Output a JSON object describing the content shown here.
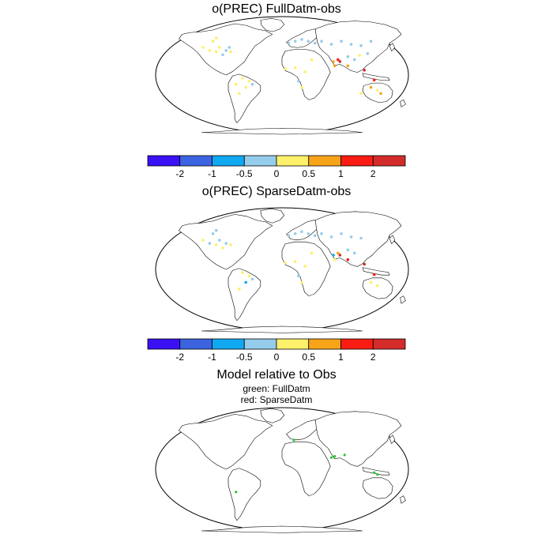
{
  "panels": [
    {
      "title": "o(PREC) FullDatm-obs",
      "legend": {
        "colors": [
          "#3a10f5",
          "#3c64e0",
          "#10a8f0",
          "#96cceb",
          "#fdf06a",
          "#f7a418",
          "#fb1c14",
          "#d32c2a"
        ],
        "ticks": [
          "-2",
          "-1",
          "-0.5",
          "0",
          "0.5",
          "1",
          "2"
        ]
      }
    },
    {
      "title": "o(PREC) SparseDatm-obs",
      "legend": {
        "colors": [
          "#3a10f5",
          "#3c64e0",
          "#10a8f0",
          "#96cceb",
          "#fdf06a",
          "#f7a418",
          "#fb1c14",
          "#d32c2a"
        ],
        "ticks": [
          "-2",
          "-1",
          "-0.5",
          "0",
          "0.5",
          "1",
          "2"
        ]
      }
    },
    {
      "title": "Model relative to Obs",
      "subtitle_1": "green: FullDatm",
      "subtitle_2": "red: SparseDatm",
      "marker_colors": {
        "full": "#22c832",
        "sparse": "#e02020"
      }
    }
  ],
  "chart_data": [
    {
      "type": "scatter",
      "title": "o(PREC) FullDatm-obs",
      "projection": "Robinson",
      "value_bins": [
        "< -2",
        "-2 to -1",
        "-1 to -0.5",
        "-0.5 to 0",
        "0 to 0.5",
        "0.5 to 1",
        "1 to 2",
        "> 2"
      ],
      "stations": [
        {
          "lon": -120,
          "lat": 45,
          "bin": 4
        },
        {
          "lon": -110,
          "lat": 40,
          "bin": 4
        },
        {
          "lon": -100,
          "lat": 38,
          "bin": 4
        },
        {
          "lon": -95,
          "lat": 45,
          "bin": 4
        },
        {
          "lon": -85,
          "lat": 40,
          "bin": 3
        },
        {
          "lon": -78,
          "lat": 38,
          "bin": 4
        },
        {
          "lon": -105,
          "lat": 55,
          "bin": 4
        },
        {
          "lon": -100,
          "lat": 60,
          "bin": 4
        },
        {
          "lon": -90,
          "lat": 33,
          "bin": 3
        },
        {
          "lon": -80,
          "lat": 45,
          "bin": 3
        },
        {
          "lon": -60,
          "lat": -5,
          "bin": 4
        },
        {
          "lon": -50,
          "lat": -10,
          "bin": 4
        },
        {
          "lon": -55,
          "lat": -20,
          "bin": 4
        },
        {
          "lon": -65,
          "lat": -30,
          "bin": 4
        },
        {
          "lon": -45,
          "lat": -15,
          "bin": 3
        },
        {
          "lon": -70,
          "lat": -15,
          "bin": 4
        },
        {
          "lon": 10,
          "lat": 52,
          "bin": 3
        },
        {
          "lon": 20,
          "lat": 55,
          "bin": 3
        },
        {
          "lon": 30,
          "lat": 58,
          "bin": 3
        },
        {
          "lon": 40,
          "lat": 55,
          "bin": 3
        },
        {
          "lon": 50,
          "lat": 52,
          "bin": 3
        },
        {
          "lon": 60,
          "lat": 55,
          "bin": 3
        },
        {
          "lon": 75,
          "lat": 50,
          "bin": 3
        },
        {
          "lon": 90,
          "lat": 55,
          "bin": 3
        },
        {
          "lon": 105,
          "lat": 50,
          "bin": 3
        },
        {
          "lon": 120,
          "lat": 48,
          "bin": 3
        },
        {
          "lon": 135,
          "lat": 55,
          "bin": 3
        },
        {
          "lon": 5,
          "lat": 10,
          "bin": 4
        },
        {
          "lon": 20,
          "lat": 12,
          "bin": 4
        },
        {
          "lon": 35,
          "lat": 5,
          "bin": 4
        },
        {
          "lon": 25,
          "lat": -10,
          "bin": 3
        },
        {
          "lon": 30,
          "lat": -20,
          "bin": 4
        },
        {
          "lon": 45,
          "lat": 25,
          "bin": 4
        },
        {
          "lon": 78,
          "lat": 22,
          "bin": 5
        },
        {
          "lon": 85,
          "lat": 25,
          "bin": 6
        },
        {
          "lon": 88,
          "lat": 22,
          "bin": 7
        },
        {
          "lon": 80,
          "lat": 15,
          "bin": 5
        },
        {
          "lon": 100,
          "lat": 30,
          "bin": 3
        },
        {
          "lon": 110,
          "lat": 25,
          "bin": 3
        },
        {
          "lon": 118,
          "lat": 32,
          "bin": 4
        },
        {
          "lon": 100,
          "lat": 15,
          "bin": 5
        },
        {
          "lon": 135,
          "lat": -20,
          "bin": 5
        },
        {
          "lon": 145,
          "lat": -25,
          "bin": 4
        },
        {
          "lon": 120,
          "lat": -30,
          "bin": 4
        },
        {
          "lon": 140,
          "lat": -8,
          "bin": 6
        },
        {
          "lon": 150,
          "lat": -30,
          "bin": 5
        },
        {
          "lon": 125,
          "lat": 8,
          "bin": 7
        },
        {
          "lon": 130,
          "lat": 35,
          "bin": 3
        }
      ]
    },
    {
      "type": "scatter",
      "title": "o(PREC) SparseDatm-obs",
      "projection": "Robinson",
      "value_bins": [
        "< -2",
        "-2 to -1",
        "-1 to -0.5",
        "-0.5 to 0",
        "0 to 0.5",
        "0.5 to 1",
        "1 to 2",
        "> 2"
      ],
      "stations": [
        {
          "lon": -120,
          "lat": 45,
          "bin": 4
        },
        {
          "lon": -110,
          "lat": 40,
          "bin": 3
        },
        {
          "lon": -100,
          "lat": 38,
          "bin": 4
        },
        {
          "lon": -95,
          "lat": 45,
          "bin": 3
        },
        {
          "lon": -85,
          "lat": 40,
          "bin": 3
        },
        {
          "lon": -78,
          "lat": 38,
          "bin": 4
        },
        {
          "lon": -105,
          "lat": 55,
          "bin": 3
        },
        {
          "lon": -100,
          "lat": 60,
          "bin": 3
        },
        {
          "lon": -90,
          "lat": 33,
          "bin": 4
        },
        {
          "lon": -60,
          "lat": -5,
          "bin": 4
        },
        {
          "lon": -50,
          "lat": -10,
          "bin": 4
        },
        {
          "lon": -55,
          "lat": -20,
          "bin": 2
        },
        {
          "lon": -65,
          "lat": -30,
          "bin": 4
        },
        {
          "lon": -45,
          "lat": -15,
          "bin": 3
        },
        {
          "lon": 10,
          "lat": 52,
          "bin": 3
        },
        {
          "lon": 20,
          "lat": 55,
          "bin": 3
        },
        {
          "lon": 30,
          "lat": 58,
          "bin": 3
        },
        {
          "lon": 40,
          "lat": 55,
          "bin": 3
        },
        {
          "lon": 50,
          "lat": 52,
          "bin": 3
        },
        {
          "lon": 60,
          "lat": 55,
          "bin": 3
        },
        {
          "lon": 75,
          "lat": 50,
          "bin": 3
        },
        {
          "lon": 90,
          "lat": 55,
          "bin": 3
        },
        {
          "lon": 105,
          "lat": 50,
          "bin": 3
        },
        {
          "lon": 120,
          "lat": 48,
          "bin": 3
        },
        {
          "lon": 5,
          "lat": 10,
          "bin": 4
        },
        {
          "lon": 20,
          "lat": 12,
          "bin": 4
        },
        {
          "lon": 35,
          "lat": 5,
          "bin": 4
        },
        {
          "lon": 25,
          "lat": -10,
          "bin": 3
        },
        {
          "lon": 30,
          "lat": -20,
          "bin": 4
        },
        {
          "lon": 45,
          "lat": 25,
          "bin": 4
        },
        {
          "lon": 78,
          "lat": 22,
          "bin": 2
        },
        {
          "lon": 85,
          "lat": 25,
          "bin": 5
        },
        {
          "lon": 88,
          "lat": 22,
          "bin": 7
        },
        {
          "lon": 80,
          "lat": 15,
          "bin": 4
        },
        {
          "lon": 100,
          "lat": 30,
          "bin": 3
        },
        {
          "lon": 110,
          "lat": 25,
          "bin": 3
        },
        {
          "lon": 100,
          "lat": 15,
          "bin": 6
        },
        {
          "lon": 135,
          "lat": -20,
          "bin": 4
        },
        {
          "lon": 145,
          "lat": -25,
          "bin": 4
        },
        {
          "lon": 140,
          "lat": -8,
          "bin": 6
        },
        {
          "lon": 125,
          "lat": 8,
          "bin": 7
        }
      ]
    },
    {
      "type": "scatter",
      "title": "Model relative to Obs",
      "projection": "Robinson",
      "series": [
        {
          "name": "FullDatm",
          "color": "green",
          "points": [
            {
              "lon": -70,
              "lat": -35
            },
            {
              "lon": 75,
              "lat": 18
            },
            {
              "lon": 80,
              "lat": 20
            },
            {
              "lon": 95,
              "lat": 22
            },
            {
              "lon": 140,
              "lat": -5
            },
            {
              "lon": 145,
              "lat": -8
            },
            {
              "lon": 18,
              "lat": 45
            }
          ]
        },
        {
          "name": "SparseDatm",
          "color": "red",
          "points": []
        }
      ]
    }
  ]
}
